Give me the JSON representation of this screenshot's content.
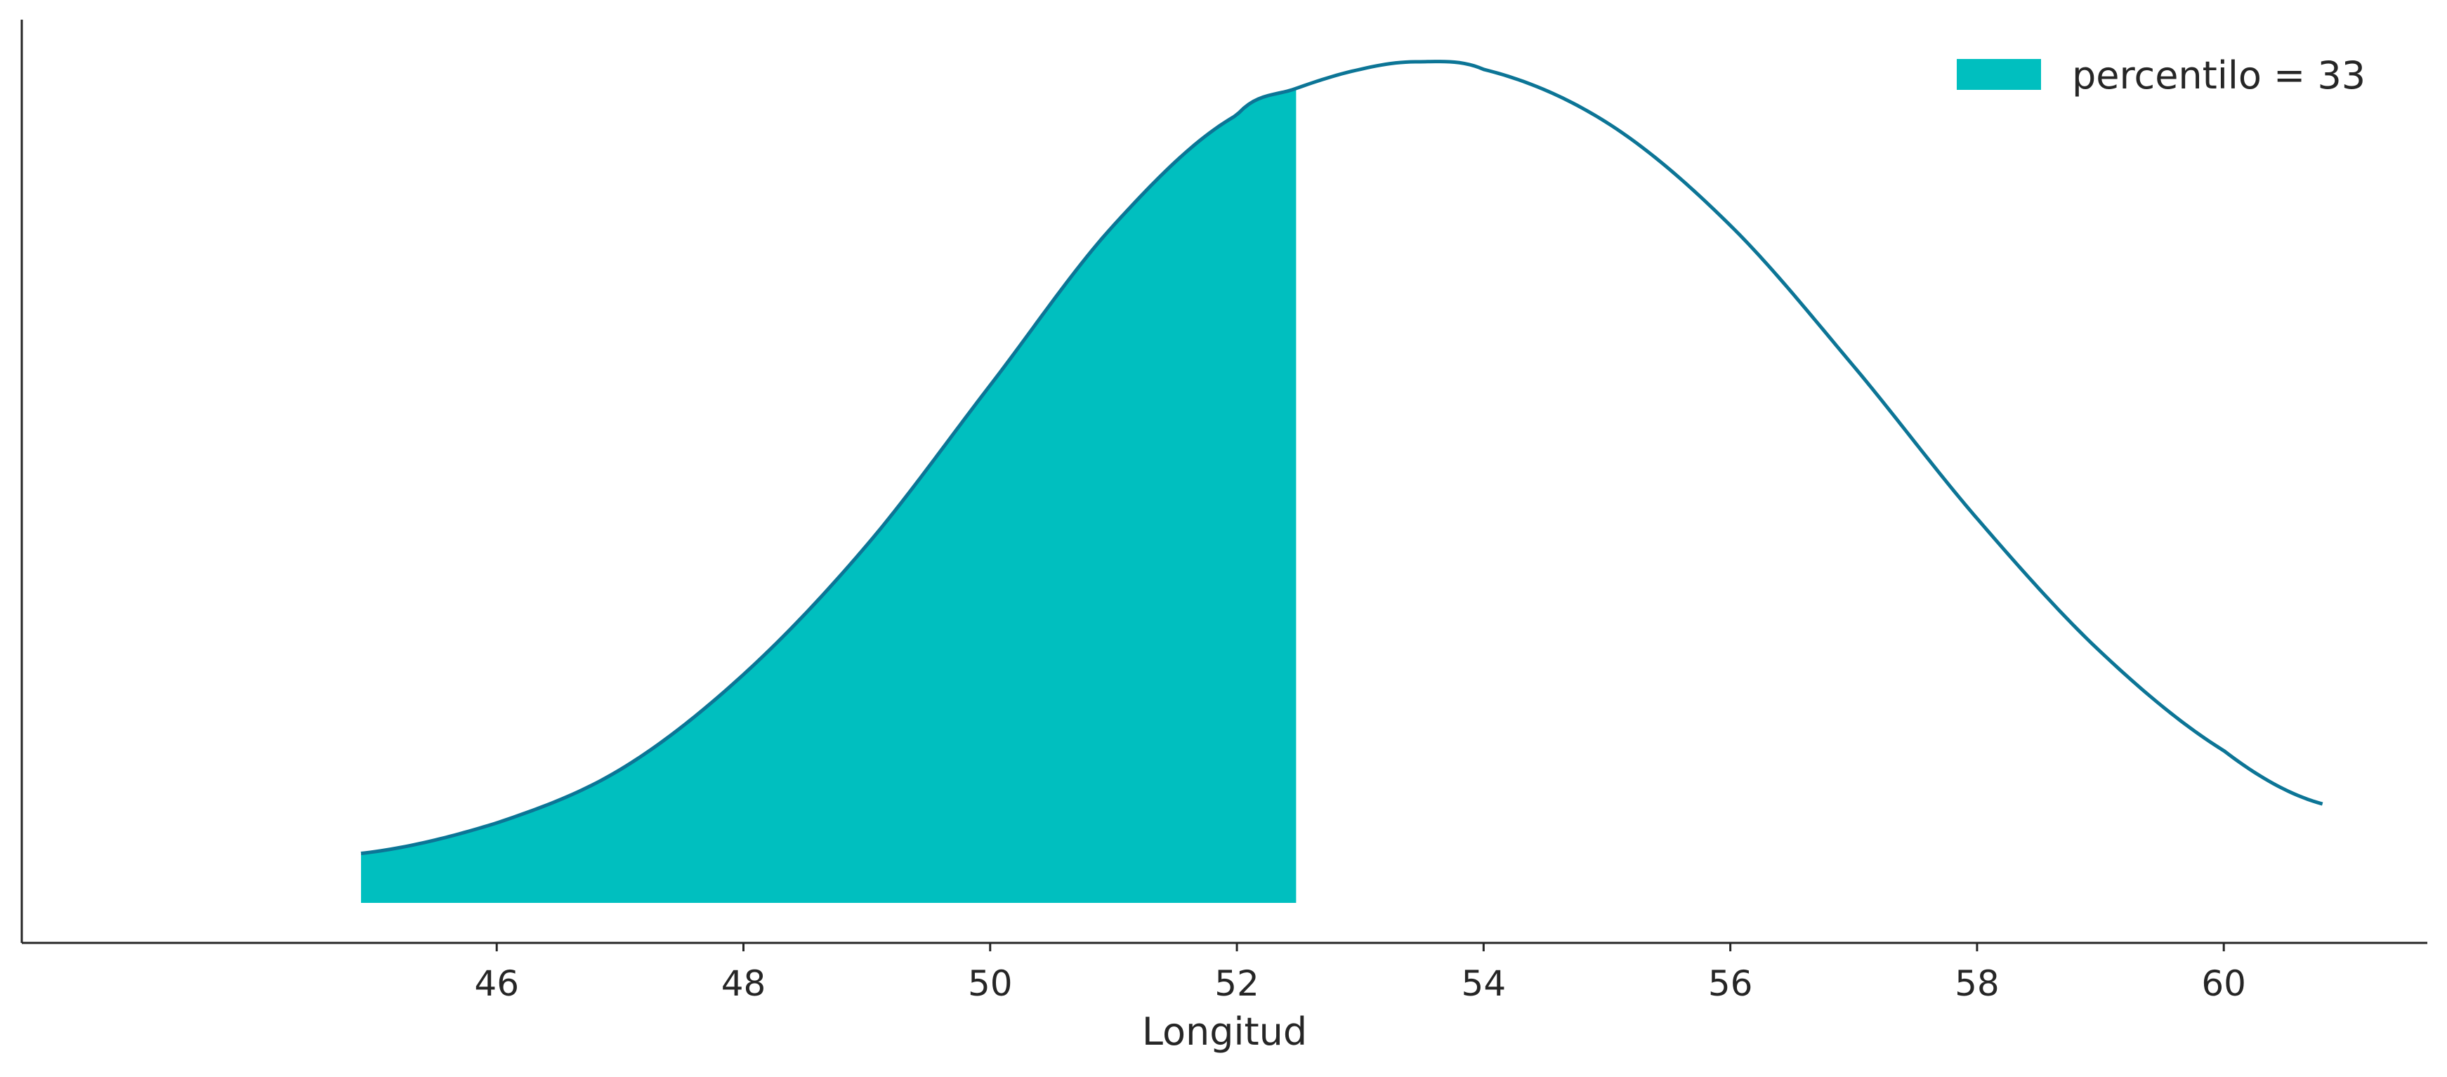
{
  "chart_data": {
    "type": "area",
    "title": "",
    "xlabel": "Longitud",
    "ylabel": "",
    "xlim": [
      42.15,
      61.65
    ],
    "xticks": [
      46,
      48,
      50,
      52,
      54,
      56,
      58,
      60
    ],
    "xtick_labels": [
      "46",
      "48",
      "50",
      "52",
      "54",
      "56",
      "58",
      "60"
    ],
    "yticks_visible": false,
    "grid": false,
    "legend_position": "top-right",
    "series": [
      {
        "name": "percentilo = 33",
        "kind": "shaded-area",
        "x_start": 44.9,
        "x_end": 52.48
      }
    ],
    "curve": {
      "x": [
        44.9,
        46,
        47,
        48,
        49,
        50,
        51,
        52,
        52.48,
        53,
        53.45,
        54,
        55,
        56,
        57,
        58,
        59,
        60,
        60.8
      ],
      "y": [
        0.013,
        0.021,
        0.035,
        0.06,
        0.094,
        0.136,
        0.178,
        0.207,
        0.214,
        0.219,
        0.221,
        0.219,
        0.205,
        0.178,
        0.141,
        0.101,
        0.066,
        0.04,
        0.026
      ]
    },
    "colors": {
      "fill": "#00BFBF",
      "curve": "#0C7596",
      "axis": "#262626"
    }
  }
}
